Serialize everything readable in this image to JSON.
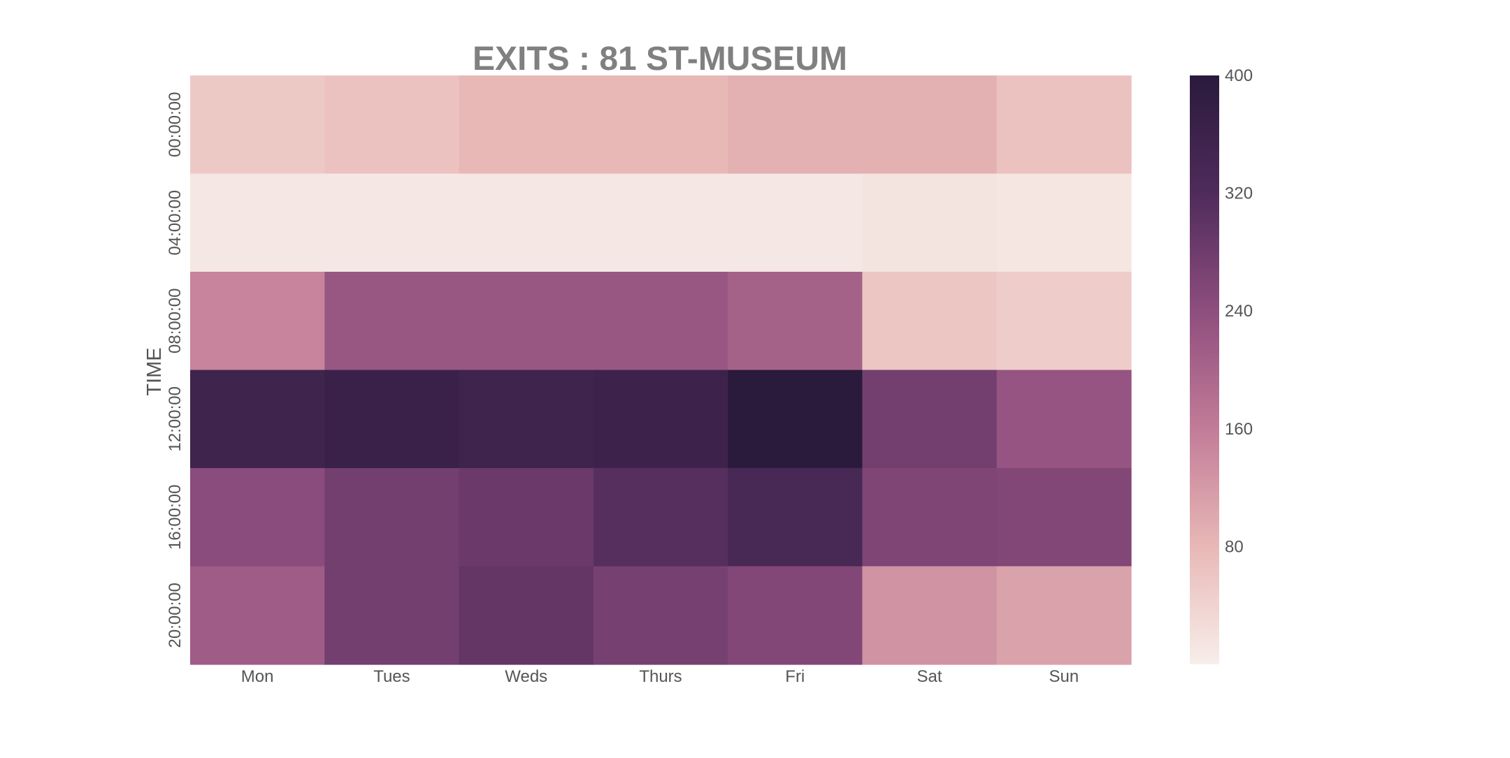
{
  "chart_data": {
    "type": "heatmap",
    "title": "EXITS : 81 ST-MUSEUM",
    "xlabel": "",
    "ylabel": "TIME",
    "x_categories": [
      "Mon",
      "Tues",
      "Weds",
      "Thurs",
      "Fri",
      "Sat",
      "Sun"
    ],
    "y_categories": [
      "00:00:00",
      "04:00:00",
      "08:00:00",
      "12:00:00",
      "16:00:00",
      "20:00:00"
    ],
    "values": [
      [
        55,
        65,
        80,
        80,
        90,
        90,
        65
      ],
      [
        10,
        10,
        10,
        10,
        10,
        15,
        12
      ],
      [
        150,
        225,
        225,
        225,
        205,
        60,
        50
      ],
      [
        355,
        365,
        355,
        360,
        400,
        275,
        230
      ],
      [
        245,
        275,
        285,
        310,
        335,
        260,
        255
      ],
      [
        215,
        275,
        295,
        270,
        255,
        130,
        110
      ]
    ],
    "colorbar": {
      "vmin": 0,
      "vmax": 400,
      "ticks": [
        80,
        160,
        240,
        320,
        400
      ],
      "colors": [
        "#f7eeea",
        "#e8b8b6",
        "#c27c98",
        "#8e4e7e",
        "#4f2b5b",
        "#2a1a3c"
      ]
    },
    "grid": false,
    "text_color": "#555555",
    "title_color": "#808080"
  }
}
